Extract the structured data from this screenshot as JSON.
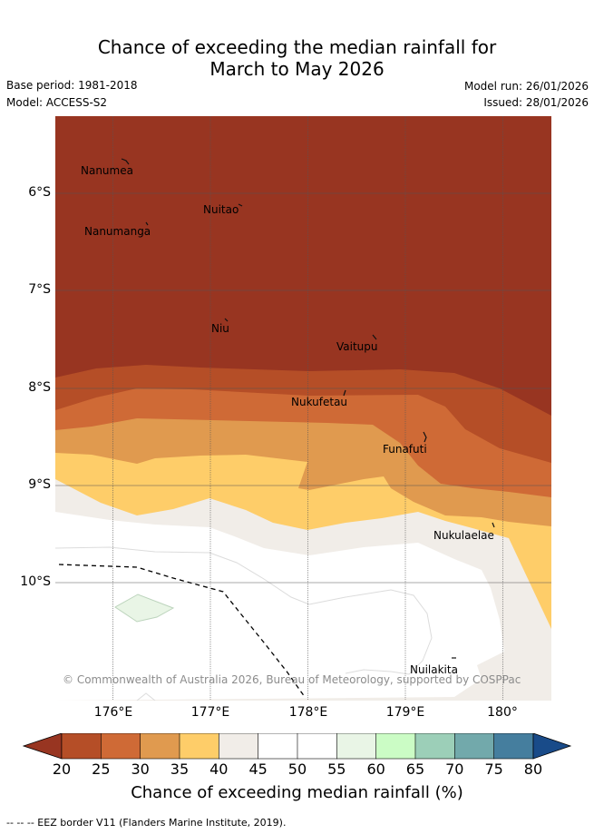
{
  "title": {
    "line1": "Chance of exceeding the median rainfall for",
    "line2": "March to May 2026"
  },
  "meta": {
    "base_period": "Base period: 1981-2018",
    "model": "Model: ACCESS-S2",
    "model_run": "Model run: 26/01/2026",
    "issued": "Issued: 28/01/2026"
  },
  "map": {
    "latitude_labels": [
      "6°S",
      "7°S",
      "8°S",
      "9°S",
      "10°S"
    ],
    "longitude_labels": [
      "176°E",
      "177°E",
      "178°E",
      "179°E",
      "180°"
    ],
    "places": [
      "Nanumea",
      "Nuitao",
      "Nanumanga",
      "Niu",
      "Vaitupu",
      "Nukufetau",
      "Funafuti",
      "Nukulaelae",
      "Nuilakita"
    ],
    "credit": "© Commonwealth of Australia 2026, Bureau of Meteorology, supported by COSPPac"
  },
  "colorbar": {
    "ticks": [
      "20",
      "25",
      "30",
      "35",
      "40",
      "45",
      "50",
      "55",
      "60",
      "65",
      "70",
      "75",
      "80"
    ],
    "colors": [
      "#983521",
      "#b54e27",
      "#cf6a36",
      "#e09a4f",
      "#fecd69",
      "#f1ede8",
      "#ffffff",
      "#ffffff",
      "#e9f5e6",
      "#cbfcc5",
      "#9ccfb8",
      "#72a9ab",
      "#457e9e",
      "#194b89"
    ],
    "label": "Chance of exceeding median rainfall (%)"
  },
  "eez_note": "-- -- -- EEZ border V11 (Flanders Marine Institute, 2019)."
}
